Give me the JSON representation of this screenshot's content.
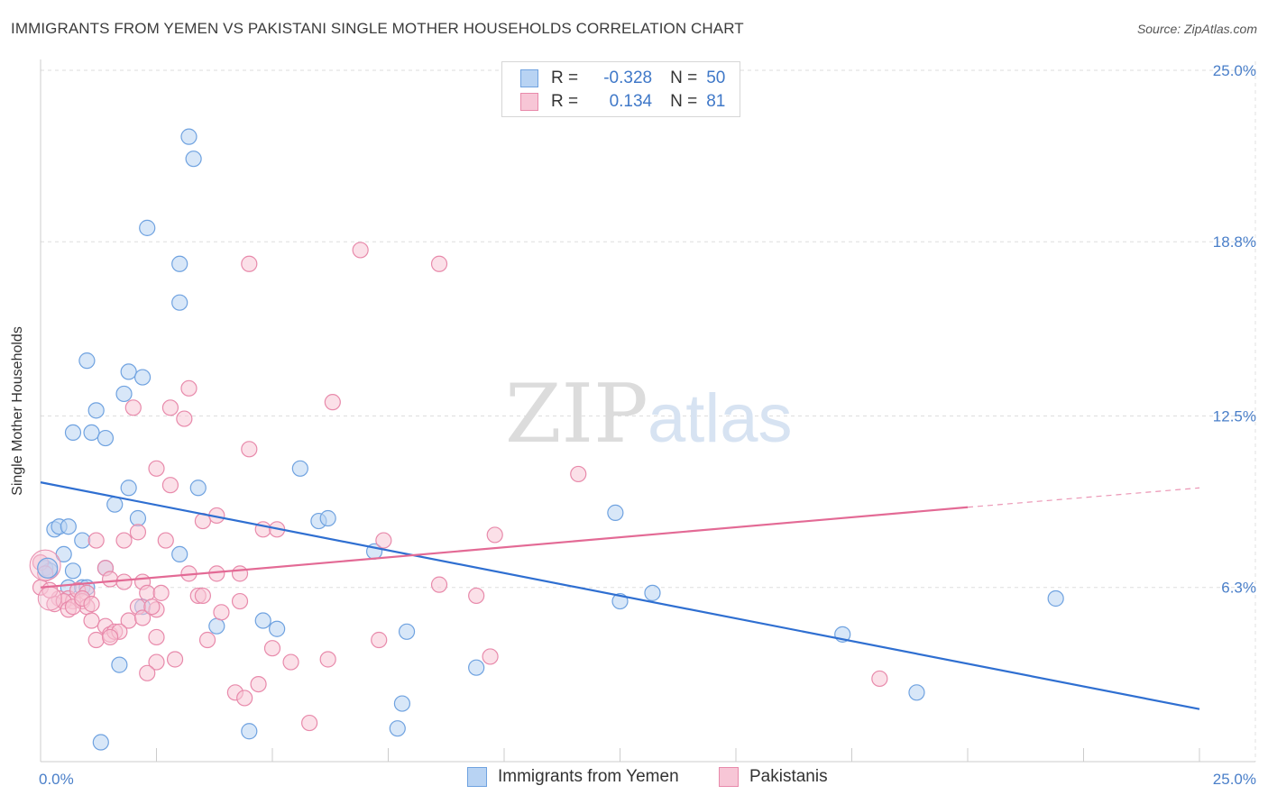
{
  "chart_data": {
    "type": "scatter",
    "title": "IMMIGRANTS FROM YEMEN VS PAKISTANI SINGLE MOTHER HOUSEHOLDS CORRELATION CHART",
    "source": "Source: ZipAtlas.com",
    "xlabel": "",
    "ylabel": "Single Mother Households",
    "xlim": [
      0,
      25
    ],
    "ylim": [
      0,
      25
    ],
    "x_tick_labels": [
      {
        "value": 0,
        "label": "0.0%"
      },
      {
        "value": 25,
        "label": "25.0%"
      }
    ],
    "y_tick_labels": [
      {
        "value": 6.3,
        "label": "6.3%"
      },
      {
        "value": 12.5,
        "label": "12.5%"
      },
      {
        "value": 18.8,
        "label": "18.8%"
      },
      {
        "value": 25.0,
        "label": "25.0%"
      }
    ],
    "watermark": {
      "zip": "ZIP",
      "atlas": "atlas"
    },
    "legend": {
      "r_label": "R =",
      "n_label": "N =",
      "rows": [
        {
          "series": "Immigrants from Yemen",
          "r": "-0.328",
          "n": "50"
        },
        {
          "series": "Pakistanis",
          "r": "0.134",
          "n": "81"
        }
      ]
    },
    "series": [
      {
        "name": "Immigrants from Yemen",
        "color": "#6fa2e0",
        "fill": "#b8d3f3",
        "trend": {
          "x0": 0,
          "y0": 10.1,
          "x1": 25,
          "y1": 1.9
        },
        "points": [
          [
            3.2,
            22.6
          ],
          [
            3.3,
            21.8
          ],
          [
            2.3,
            19.3
          ],
          [
            3.0,
            18.0
          ],
          [
            3.0,
            16.6
          ],
          [
            1.0,
            14.5
          ],
          [
            1.9,
            14.1
          ],
          [
            2.2,
            13.9
          ],
          [
            1.8,
            13.3
          ],
          [
            1.2,
            12.7
          ],
          [
            0.7,
            11.9
          ],
          [
            1.1,
            11.9
          ],
          [
            1.4,
            11.7
          ],
          [
            5.6,
            10.6
          ],
          [
            1.9,
            9.9
          ],
          [
            3.4,
            9.9
          ],
          [
            1.6,
            9.3
          ],
          [
            12.4,
            9.0
          ],
          [
            2.1,
            8.8
          ],
          [
            6.0,
            8.7
          ],
          [
            6.2,
            8.8
          ],
          [
            0.3,
            8.4
          ],
          [
            0.4,
            8.5
          ],
          [
            0.6,
            8.5
          ],
          [
            0.9,
            8.0
          ],
          [
            0.5,
            7.5
          ],
          [
            3.0,
            7.5
          ],
          [
            7.2,
            7.6
          ],
          [
            0.1,
            7.0
          ],
          [
            0.2,
            6.9
          ],
          [
            0.7,
            6.9
          ],
          [
            1.4,
            7.0
          ],
          [
            0.6,
            6.3
          ],
          [
            0.9,
            6.3
          ],
          [
            1.0,
            6.3
          ],
          [
            2.2,
            5.6
          ],
          [
            12.5,
            5.8
          ],
          [
            13.2,
            6.1
          ],
          [
            21.9,
            5.9
          ],
          [
            3.8,
            4.9
          ],
          [
            4.8,
            5.1
          ],
          [
            5.1,
            4.8
          ],
          [
            7.9,
            4.7
          ],
          [
            17.3,
            4.6
          ],
          [
            1.7,
            3.5
          ],
          [
            9.4,
            3.4
          ],
          [
            7.8,
            2.1
          ],
          [
            18.9,
            2.5
          ],
          [
            4.5,
            1.1
          ],
          [
            7.7,
            1.2
          ],
          [
            1.3,
            0.7
          ]
        ]
      },
      {
        "name": "Pakistanis",
        "color": "#e88aab",
        "fill": "#f7c6d6",
        "trend": {
          "x0": 0,
          "y0": 6.3,
          "x1": 20,
          "y1": 9.2
        },
        "trend_dashed": {
          "x0": 20,
          "y0": 9.2,
          "x1": 25,
          "y1": 9.9
        },
        "points": [
          [
            6.9,
            18.5
          ],
          [
            4.5,
            18.0
          ],
          [
            8.6,
            18.0
          ],
          [
            3.2,
            13.5
          ],
          [
            6.3,
            13.0
          ],
          [
            2.0,
            12.8
          ],
          [
            2.8,
            12.8
          ],
          [
            3.1,
            12.4
          ],
          [
            4.5,
            11.3
          ],
          [
            2.5,
            10.6
          ],
          [
            11.6,
            10.4
          ],
          [
            2.8,
            10.0
          ],
          [
            3.8,
            8.9
          ],
          [
            4.8,
            8.4
          ],
          [
            5.1,
            8.4
          ],
          [
            9.8,
            8.2
          ],
          [
            3.5,
            8.7
          ],
          [
            1.8,
            8.0
          ],
          [
            2.1,
            8.3
          ],
          [
            2.7,
            8.0
          ],
          [
            1.2,
            8.0
          ],
          [
            7.4,
            8.0
          ],
          [
            0.0,
            7.2
          ],
          [
            0.1,
            6.8
          ],
          [
            1.4,
            7.0
          ],
          [
            3.2,
            6.8
          ],
          [
            3.8,
            6.8
          ],
          [
            4.3,
            6.8
          ],
          [
            1.5,
            6.6
          ],
          [
            1.8,
            6.5
          ],
          [
            2.2,
            6.5
          ],
          [
            8.6,
            6.4
          ],
          [
            9.4,
            6.0
          ],
          [
            0.4,
            5.9
          ],
          [
            0.6,
            5.9
          ],
          [
            0.7,
            5.8
          ],
          [
            0.8,
            6.2
          ],
          [
            1.0,
            6.1
          ],
          [
            0.9,
            5.8
          ],
          [
            0.3,
            5.7
          ],
          [
            0.5,
            5.8
          ],
          [
            1.0,
            5.6
          ],
          [
            0.6,
            5.5
          ],
          [
            0.7,
            5.6
          ],
          [
            2.3,
            6.1
          ],
          [
            2.6,
            6.1
          ],
          [
            3.4,
            6.0
          ],
          [
            3.5,
            6.0
          ],
          [
            4.3,
            5.8
          ],
          [
            2.1,
            5.6
          ],
          [
            2.5,
            5.5
          ],
          [
            3.9,
            5.4
          ],
          [
            1.1,
            5.1
          ],
          [
            1.9,
            5.1
          ],
          [
            2.2,
            5.2
          ],
          [
            1.4,
            4.9
          ],
          [
            1.5,
            4.6
          ],
          [
            1.6,
            4.7
          ],
          [
            1.7,
            4.7
          ],
          [
            1.2,
            4.4
          ],
          [
            1.5,
            4.5
          ],
          [
            2.5,
            4.5
          ],
          [
            3.6,
            4.4
          ],
          [
            5.0,
            4.1
          ],
          [
            7.3,
            4.4
          ],
          [
            9.7,
            3.8
          ],
          [
            2.5,
            3.6
          ],
          [
            2.9,
            3.7
          ],
          [
            5.4,
            3.6
          ],
          [
            6.2,
            3.7
          ],
          [
            2.3,
            3.2
          ],
          [
            18.1,
            3.0
          ],
          [
            4.7,
            2.8
          ],
          [
            4.2,
            2.5
          ],
          [
            4.4,
            2.3
          ],
          [
            5.8,
            1.4
          ],
          [
            0.0,
            6.3
          ],
          [
            0.2,
            6.2
          ],
          [
            0.9,
            5.9
          ],
          [
            1.1,
            5.7
          ],
          [
            2.4,
            5.6
          ]
        ]
      }
    ]
  }
}
